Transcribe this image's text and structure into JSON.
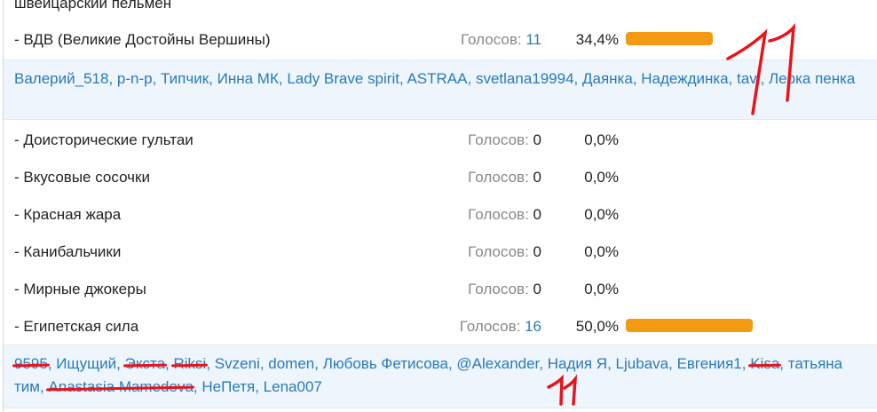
{
  "poll": {
    "title": "швейцарский пельмен",
    "votes_label": "Голосов:",
    "accent_color": "#f39a12",
    "annotation_color": "#e8141a",
    "options": [
      {
        "label": "- ВДВ (Великие Достойны Вершины)",
        "votes": "11",
        "percent": "34,4%",
        "fill": 34.4
      },
      {
        "label": "- Доисторические гультаи",
        "votes": "0",
        "percent": "0,0%",
        "fill": 0
      },
      {
        "label": "- Вкусовые сосочки",
        "votes": "0",
        "percent": "0,0%",
        "fill": 0
      },
      {
        "label": "- Красная жара",
        "votes": "0",
        "percent": "0,0%",
        "fill": 0
      },
      {
        "label": "- Канибальчики",
        "votes": "0",
        "percent": "0,0%",
        "fill": 0
      },
      {
        "label": "- Мирные джокеры",
        "votes": "0",
        "percent": "0,0%",
        "fill": 0
      },
      {
        "label": "- Египетская сила",
        "votes": "16",
        "percent": "50,0%",
        "fill": 50.0
      }
    ],
    "voters_vdv": [
      "Валерий_518",
      "p-n-p",
      "Типчик",
      "Инна МК",
      "Lady Brave spirit",
      "ASTRAA",
      "svetlana19994",
      "Даянка",
      "Надеждинка",
      "tavi",
      "Лерка пенка"
    ],
    "voters_egypt": [
      {
        "name": "9595",
        "struck": true
      },
      {
        "name": "Ищущий",
        "struck": false
      },
      {
        "name": "Экста",
        "struck": true
      },
      {
        "name": "Riksi",
        "struck": true
      },
      {
        "name": "Svzeni",
        "struck": false
      },
      {
        "name": "domen",
        "struck": false
      },
      {
        "name": "Любовь Фетисова",
        "struck": false
      },
      {
        "name": "@Alexander",
        "struck": false
      },
      {
        "name": "Надия Я",
        "struck": false
      },
      {
        "name": "Ljubava",
        "struck": false
      },
      {
        "name": "Евгения1",
        "struck": false
      },
      {
        "name": "Kisa",
        "struck": true
      },
      {
        "name": "татьяна тим",
        "struck": false
      },
      {
        "name": "Anastasia Mamedova",
        "struck": true
      },
      {
        "name": "НеПетя",
        "struck": false
      },
      {
        "name": "Lena007",
        "struck": false
      }
    ],
    "handwritten_annotations": [
      "11",
      "11"
    ]
  }
}
